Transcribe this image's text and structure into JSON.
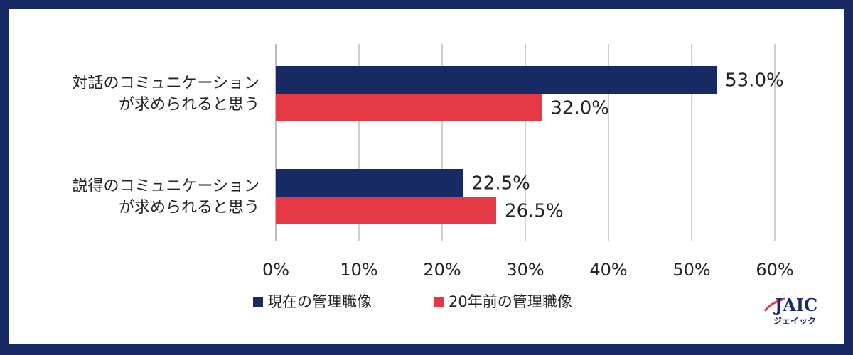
{
  "chart_data": {
    "type": "bar",
    "orientation": "horizontal",
    "categories": [
      [
        "対話のコミュニケーション",
        "が求められると思う"
      ],
      [
        "説得のコミュニケーション",
        "が求められると思う"
      ]
    ],
    "series": [
      {
        "name": "現在の管理職像",
        "values": [
          53.0,
          22.5
        ],
        "labels": [
          "53.0%",
          "22.5%"
        ],
        "color": "#172a64"
      },
      {
        "name": "20年前の管理職像",
        "values": [
          32.0,
          26.5
        ],
        "labels": [
          "32.0%",
          "26.5%"
        ],
        "color": "#e53a46"
      }
    ],
    "xlim": [
      0,
      60
    ],
    "ticks": [
      0,
      10,
      20,
      30,
      40,
      50,
      60
    ],
    "tick_labels": [
      "0%",
      "10%",
      "20%",
      "30%",
      "40%",
      "50%",
      "60%"
    ],
    "grid": true,
    "legend_position": "bottom"
  },
  "logo": {
    "main_text": "JAIC",
    "sub_text": "ジェイック"
  },
  "colors": {
    "border": "#172a64",
    "grid": "#cfcfcf",
    "logo_accent": "#e53a46"
  }
}
